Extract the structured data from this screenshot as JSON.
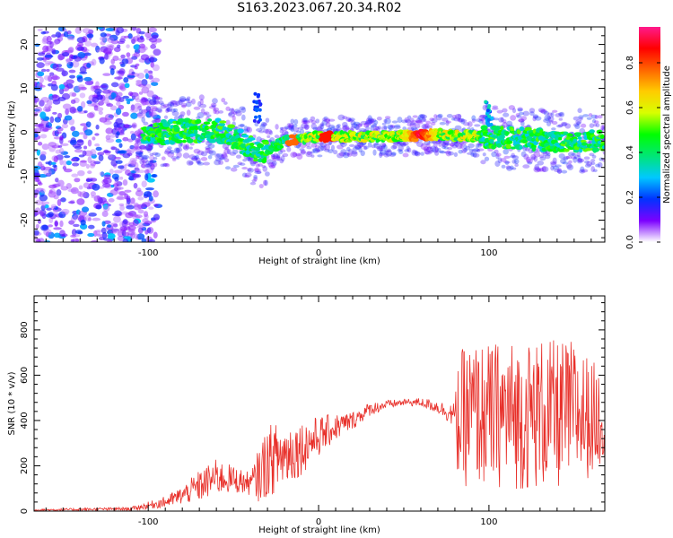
{
  "figure": {
    "title": "S163.2023.067.20.34.R02"
  },
  "chart_data": [
    {
      "type": "heatmap",
      "xlabel": "Height of straight line (km)",
      "ylabel": "Frequency (Hz)",
      "xlim": [
        -167,
        168
      ],
      "ylim": [
        -25,
        24
      ],
      "xticks": [
        -100,
        0,
        100
      ],
      "yticks": [
        -20,
        -10,
        0,
        10,
        20
      ],
      "colorbar": {
        "label": "Normalized spectral amplitude",
        "ticks": [
          0.0,
          0.2,
          0.4,
          0.6,
          0.8
        ],
        "range": [
          0,
          0.96
        ],
        "colormap": [
          "#ffffff",
          "#7b00ff",
          "#0033ff",
          "#00c8ff",
          "#00e676",
          "#00ff00",
          "#d8ff00",
          "#ffcc00",
          "#ff6600",
          "#ff0000",
          "#ff1a8c"
        ]
      },
      "ridge": {
        "description_points": [
          {
            "x": -100,
            "y": 0
          },
          {
            "x": -60,
            "y": 0.5
          },
          {
            "x": -45,
            "y": -2
          },
          {
            "x": -35,
            "y": -5
          },
          {
            "x": -20,
            "y": -2
          },
          {
            "x": 0,
            "y": -1
          },
          {
            "x": 40,
            "y": -1
          },
          {
            "x": 70,
            "y": -0.5
          },
          {
            "x": 100,
            "y": -1
          },
          {
            "x": 140,
            "y": -2
          },
          {
            "x": 168,
            "y": -2
          }
        ],
        "peak": {
          "x": 60,
          "y": -0.5,
          "amplitude": 0.95
        }
      },
      "noise_region": {
        "x_from": -167,
        "x_to": -100,
        "y_from": -25,
        "y_to": 24
      }
    },
    {
      "type": "line",
      "xlabel": "Height of straight line (km)",
      "ylabel": "SNR (10 * v/v)",
      "xlim": [
        -167,
        168
      ],
      "ylim": [
        0,
        950
      ],
      "xticks": [
        -100,
        0,
        100
      ],
      "yticks": [
        0,
        200,
        400,
        600,
        800
      ],
      "series": [
        {
          "color": "#e8302a",
          "envelope": {
            "x": [
              -167,
              -110,
              -90,
              -80,
              -70,
              -60,
              -50,
              -40,
              -35,
              -30,
              -20,
              -10,
              0,
              10,
              20,
              30,
              40,
              50,
              60,
              70,
              75,
              80,
              82,
              90,
              100,
              110,
              120,
              130,
              140,
              150,
              160,
              168
            ],
            "y": [
              5,
              10,
              40,
              70,
              110,
              150,
              140,
              120,
              160,
              220,
              250,
              280,
              330,
              370,
              400,
              450,
              470,
              480,
              480,
              460,
              440,
              420,
              400,
              430,
              420,
              430,
              420,
              430,
              420,
              440,
              410,
              420
            ],
            "spread": [
              4,
              8,
              25,
              40,
              70,
              80,
              60,
              50,
              120,
              160,
              150,
              120,
              90,
              60,
              40,
              30,
              20,
              15,
              20,
              30,
              40,
              60,
              300,
              320,
              320,
              330,
              330,
              340,
              330,
              320,
              260,
              200
            ]
          }
        }
      ]
    }
  ]
}
